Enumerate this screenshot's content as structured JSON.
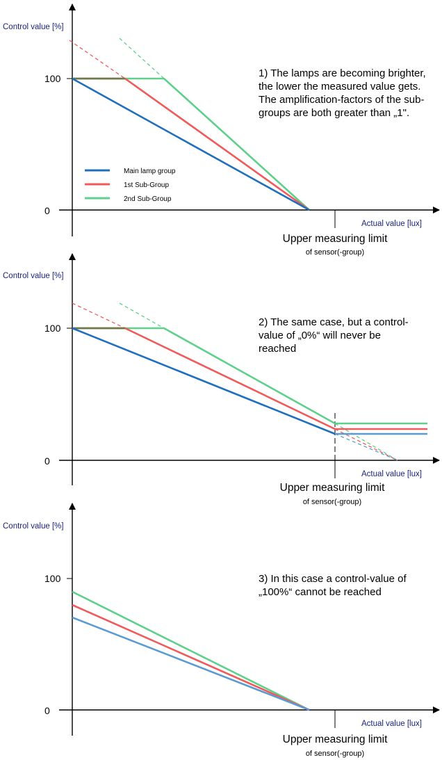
{
  "colors": {
    "main": "#1f6fbf",
    "sub1": "#f05a5a",
    "sub2": "#5dd08a",
    "main_light": "#5b9bd5",
    "axis": "#000000",
    "label_blue": "#1a237e",
    "overlap": "#6b7a4a"
  },
  "legend": {
    "main": "Main lamp group",
    "sub1": "1st Sub-Group",
    "sub2": "2nd Sub-Group"
  },
  "chart_data": [
    {
      "type": "line",
      "ylabel": "Control value [%]",
      "xlabel": "Actual value [lux]",
      "yticks": [
        "0",
        "100"
      ],
      "limit_label": "Upper measuring limit",
      "limit_sub": "of sensor(-group)",
      "note": [
        "1) The lamps are becoming brighter,",
        "the lower the measured value gets.",
        "The amplification-factors of the sub-",
        "groups are both greater than „1\"."
      ],
      "legend_position": "left-middle",
      "series": [
        {
          "name": "Main lamp group",
          "points": [
            [
              0,
              100
            ],
            [
              1,
              0
            ]
          ]
        },
        {
          "name": "1st Sub-Group",
          "points": [
            [
              0,
              100
            ],
            [
              0.22,
              100
            ],
            [
              1,
              0
            ]
          ],
          "dashed_extension": [
            [
              0,
              130
            ],
            [
              0.22,
              100
            ]
          ]
        },
        {
          "name": "2nd Sub-Group",
          "points": [
            [
              0,
              100
            ],
            [
              0.38,
              100
            ],
            [
              1,
              0
            ]
          ],
          "dashed_extension": [
            [
              0.2,
              155
            ],
            [
              0.38,
              100
            ]
          ]
        }
      ]
    },
    {
      "type": "line",
      "ylabel": "Control value [%]",
      "xlabel": "Actual value [lux]",
      "yticks": [
        "0",
        "100"
      ],
      "limit_label": "Upper measuring limit",
      "limit_sub": "of sensor(-group)",
      "note": [
        "2) The same case, but a control-",
        "value of „0%“ will never be",
        "reached"
      ],
      "series": [
        {
          "name": "Main lamp group",
          "points": [
            [
              0,
              100
            ],
            [
              1.11,
              20
            ],
            [
              1.5,
              20
            ]
          ],
          "dashed_extension": [
            [
              1.11,
              20
            ],
            [
              1.38,
              0
            ]
          ]
        },
        {
          "name": "1st Sub-Group",
          "points": [
            [
              0,
              100
            ],
            [
              0.22,
              100
            ],
            [
              1.11,
              24
            ],
            [
              1.5,
              24
            ]
          ],
          "dashed_extension": [
            [
              0,
              120
            ],
            [
              0.22,
              100
            ],
            [
              1.11,
              24
            ],
            [
              1.38,
              0
            ]
          ]
        },
        {
          "name": "2nd Sub-Group",
          "points": [
            [
              0,
              100
            ],
            [
              0.38,
              100
            ],
            [
              1.11,
              28
            ],
            [
              1.5,
              28
            ]
          ],
          "dashed_extension": [
            [
              0.2,
              120
            ],
            [
              0.38,
              100
            ],
            [
              1.11,
              28
            ],
            [
              1.38,
              0
            ]
          ]
        }
      ]
    },
    {
      "type": "line",
      "ylabel": "Control value [%]",
      "xlabel": "Actual value [lux]",
      "yticks": [
        "0",
        "100"
      ],
      "limit_label": "Upper measuring limit",
      "limit_sub": "of sensor(-group)",
      "note": [
        "3) In this case a control-value of",
        "„100%“ cannot be reached"
      ],
      "series": [
        {
          "name": "Main lamp group",
          "points": [
            [
              0,
              70
            ],
            [
              1,
              0
            ]
          ]
        },
        {
          "name": "1st Sub-Group",
          "points": [
            [
              0,
              80
            ],
            [
              1,
              0
            ]
          ]
        },
        {
          "name": "2nd Sub-Group",
          "points": [
            [
              0,
              90
            ],
            [
              1,
              0
            ]
          ]
        }
      ]
    }
  ]
}
